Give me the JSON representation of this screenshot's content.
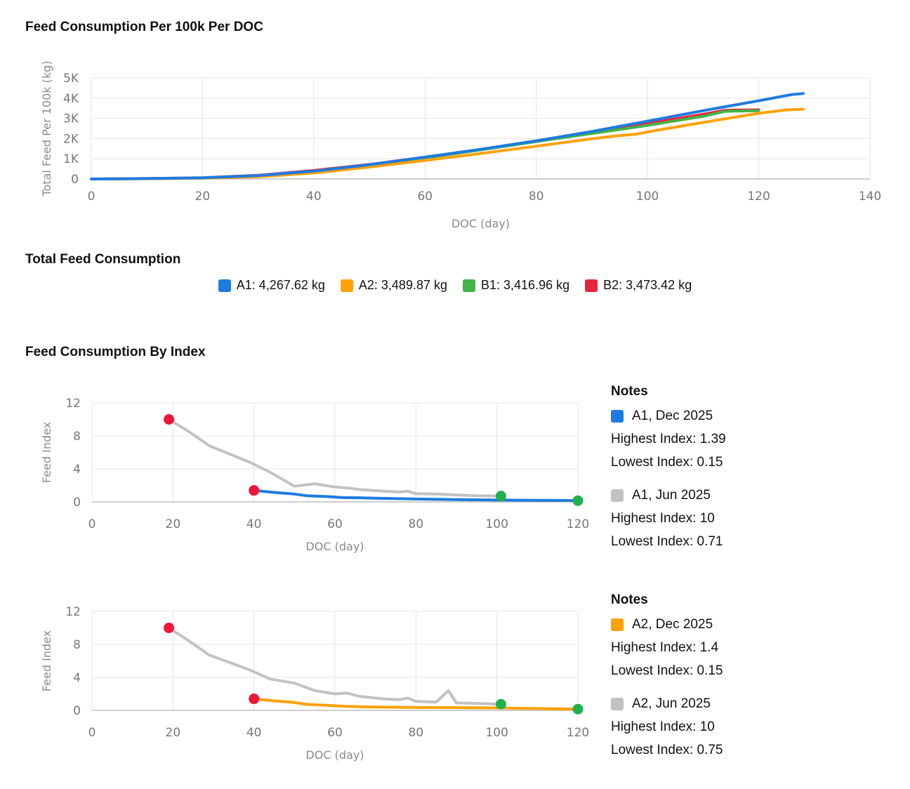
{
  "titles": {
    "per_doc": "Feed Consumption Per 100k Per DOC",
    "total": "Total Feed Consumption",
    "by_index": "Feed Consumption By Index"
  },
  "total_legend": [
    {
      "label": "A1: 4,267.62 kg",
      "color": "#1e7be0"
    },
    {
      "label": "A2: 3,489.87 kg",
      "color": "#ffa10a"
    },
    {
      "label": "B1: 3,416.96 kg",
      "color": "#44b348"
    },
    {
      "label": "B2: 3,473.42 kg",
      "color": "#e8253e"
    }
  ],
  "notes": [
    {
      "heading": "Notes",
      "entries": [
        {
          "label": "A1, Dec 2025",
          "color": "#1e7be0",
          "highest": "Highest Index: 1.39",
          "lowest": "Lowest Index: 0.15"
        },
        {
          "label": "A1, Jun 2025",
          "color": "#c2c2c2",
          "highest": "Highest Index: 10",
          "lowest": "Lowest Index: 0.71"
        }
      ]
    },
    {
      "heading": "Notes",
      "entries": [
        {
          "label": "A2, Dec 2025",
          "color": "#ffa10a",
          "highest": "Highest Index: 1.4",
          "lowest": "Lowest Index: 0.15"
        },
        {
          "label": "A2, Jun 2025",
          "color": "#c2c2c2",
          "highest": "Highest Index: 10",
          "lowest": "Lowest Index: 0.75"
        }
      ]
    }
  ],
  "chart_data": [
    {
      "type": "line",
      "title": "Feed Consumption Per 100k Per DOC",
      "xlabel": "DOC (day)",
      "ylabel": "Total Feed Per 100k (kg)",
      "xlim": [
        0,
        140
      ],
      "ylim": [
        0,
        5000
      ],
      "xticks": [
        0,
        20,
        40,
        60,
        80,
        100,
        120,
        140
      ],
      "yticks": [
        0,
        1000,
        2000,
        3000,
        4000,
        5000
      ],
      "xtick_labels": [
        "0",
        "20",
        "40",
        "60",
        "80",
        "100",
        "120",
        "140"
      ],
      "ytick_labels": [
        "0",
        "1K",
        "2K",
        "3K",
        "4K",
        "5K"
      ],
      "grid": true,
      "series": [
        {
          "color": "#e8253e",
          "points": [
            [
              0,
              0
            ],
            [
              10,
              20
            ],
            [
              20,
              60
            ],
            [
              30,
              180
            ],
            [
              40,
              420
            ],
            [
              50,
              720
            ],
            [
              60,
              1080
            ],
            [
              70,
              1450
            ],
            [
              80,
              1880
            ],
            [
              90,
              2300
            ],
            [
              100,
              2750
            ],
            [
              110,
              3200
            ],
            [
              114,
              3400
            ],
            [
              120,
              3420
            ]
          ]
        },
        {
          "color": "#44b348",
          "points": [
            [
              0,
              0
            ],
            [
              10,
              20
            ],
            [
              20,
              50
            ],
            [
              30,
              150
            ],
            [
              40,
              370
            ],
            [
              50,
              690
            ],
            [
              60,
              1050
            ],
            [
              70,
              1440
            ],
            [
              80,
              1850
            ],
            [
              90,
              2250
            ],
            [
              100,
              2650
            ],
            [
              110,
              3100
            ],
            [
              114,
              3350
            ],
            [
              120,
              3380
            ]
          ]
        },
        {
          "color": "#ffa10a",
          "points": [
            [
              0,
              0
            ],
            [
              10,
              15
            ],
            [
              20,
              40
            ],
            [
              30,
              110
            ],
            [
              40,
              300
            ],
            [
              50,
              590
            ],
            [
              60,
              920
            ],
            [
              70,
              1260
            ],
            [
              80,
              1620
            ],
            [
              90,
              1990
            ],
            [
              94,
              2120
            ],
            [
              98,
              2220
            ],
            [
              100,
              2330
            ],
            [
              110,
              2800
            ],
            [
              120,
              3250
            ],
            [
              125,
              3420
            ],
            [
              128,
              3450
            ]
          ]
        },
        {
          "color": "#1e7be0",
          "points": [
            [
              0,
              0
            ],
            [
              10,
              20
            ],
            [
              20,
              60
            ],
            [
              30,
              170
            ],
            [
              40,
              390
            ],
            [
              50,
              710
            ],
            [
              60,
              1080
            ],
            [
              70,
              1470
            ],
            [
              80,
              1890
            ],
            [
              90,
              2350
            ],
            [
              100,
              2860
            ],
            [
              110,
              3380
            ],
            [
              120,
              3870
            ],
            [
              126,
              4180
            ],
            [
              128,
              4230
            ]
          ]
        }
      ]
    },
    {
      "type": "line",
      "xlabel": "DOC (day)",
      "ylabel": "Feed Index",
      "xlim": [
        0,
        120
      ],
      "ylim": [
        0,
        12
      ],
      "xticks": [
        0,
        20,
        40,
        60,
        80,
        100,
        120
      ],
      "yticks": [
        0,
        4,
        8,
        12
      ],
      "grid": true,
      "series": [
        {
          "color": "#c2c2c2",
          "points": [
            [
              19,
              10
            ],
            [
              24,
              8.5
            ],
            [
              29,
              6.8
            ],
            [
              34,
              5.8
            ],
            [
              39,
              4.8
            ],
            [
              44,
              3.6
            ],
            [
              50,
              1.9
            ],
            [
              55,
              2.2
            ],
            [
              60,
              1.8
            ],
            [
              63,
              1.7
            ],
            [
              66,
              1.5
            ],
            [
              72,
              1.3
            ],
            [
              76,
              1.2
            ],
            [
              78,
              1.3
            ],
            [
              80,
              1
            ],
            [
              85,
              0.95
            ],
            [
              90,
              0.85
            ],
            [
              95,
              0.75
            ],
            [
              101,
              0.71
            ]
          ]
        },
        {
          "color": "#1e7be0",
          "points": [
            [
              40,
              1.39
            ],
            [
              45,
              1.15
            ],
            [
              50,
              0.95
            ],
            [
              53,
              0.75
            ],
            [
              58,
              0.65
            ],
            [
              62,
              0.52
            ],
            [
              66,
              0.5
            ],
            [
              70,
              0.45
            ],
            [
              80,
              0.35
            ],
            [
              90,
              0.28
            ],
            [
              100,
              0.22
            ],
            [
              110,
              0.2
            ],
            [
              116,
              0.18
            ],
            [
              120,
              0.15
            ]
          ]
        }
      ],
      "markers": [
        {
          "x": 19,
          "y": 10,
          "color": "#ef1739"
        },
        {
          "x": 40,
          "y": 1.39,
          "color": "#ef1739"
        },
        {
          "x": 101,
          "y": 0.71,
          "color": "#1fb14b"
        },
        {
          "x": 120,
          "y": 0.15,
          "color": "#1fb14b"
        }
      ]
    },
    {
      "type": "line",
      "xlabel": "DOC (day)",
      "ylabel": "Feed Index",
      "xlim": [
        0,
        120
      ],
      "ylim": [
        0,
        12
      ],
      "xticks": [
        0,
        20,
        40,
        60,
        80,
        100,
        120
      ],
      "yticks": [
        0,
        4,
        8,
        12
      ],
      "grid": true,
      "series": [
        {
          "color": "#c2c2c2",
          "points": [
            [
              19,
              10
            ],
            [
              24,
              8.4
            ],
            [
              29,
              6.7
            ],
            [
              34,
              5.8
            ],
            [
              39,
              4.9
            ],
            [
              44,
              3.8
            ],
            [
              50,
              3.3
            ],
            [
              55,
              2.4
            ],
            [
              60,
              2.0
            ],
            [
              63,
              2.1
            ],
            [
              66,
              1.7
            ],
            [
              72,
              1.4
            ],
            [
              76,
              1.3
            ],
            [
              78,
              1.5
            ],
            [
              80,
              1.1
            ],
            [
              85,
              1.0
            ],
            [
              88,
              2.4
            ],
            [
              90,
              0.9
            ],
            [
              95,
              0.85
            ],
            [
              101,
              0.75
            ]
          ]
        },
        {
          "color": "#ffa10a",
          "points": [
            [
              40,
              1.4
            ],
            [
              45,
              1.15
            ],
            [
              50,
              0.95
            ],
            [
              53,
              0.72
            ],
            [
              58,
              0.62
            ],
            [
              62,
              0.5
            ],
            [
              66,
              0.45
            ],
            [
              70,
              0.4
            ],
            [
              80,
              0.35
            ],
            [
              90,
              0.33
            ],
            [
              100,
              0.3
            ],
            [
              110,
              0.22
            ],
            [
              116,
              0.18
            ],
            [
              120,
              0.15
            ]
          ]
        }
      ],
      "markers": [
        {
          "x": 19,
          "y": 10,
          "color": "#ef1739"
        },
        {
          "x": 40,
          "y": 1.4,
          "color": "#ef1739"
        },
        {
          "x": 101,
          "y": 0.75,
          "color": "#1fb14b"
        },
        {
          "x": 120,
          "y": 0.15,
          "color": "#1fb14b"
        }
      ]
    }
  ]
}
